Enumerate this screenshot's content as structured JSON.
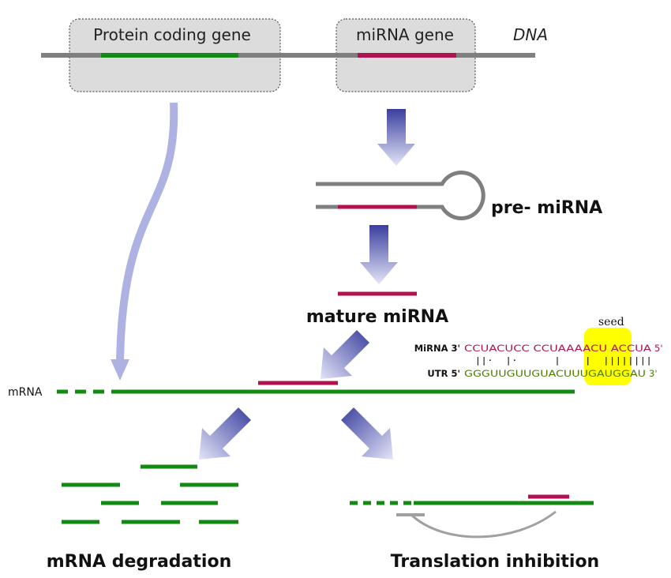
{
  "labels": {
    "protein_coding_gene": "Protein coding gene",
    "mirna_gene": "miRNA gene",
    "dna": "DNA",
    "pre_mirna": "pre- miRNA",
    "mature_mirna": "mature miRNA",
    "mrna": "mRNA",
    "mrna_degradation": "mRNA degradation",
    "translation_inhibition": "Translation inhibition",
    "seed": "seed"
  },
  "alignment": {
    "mirna_prefix": "MiRNA 3'",
    "mirna_seq": "CCUACUCC CCUAAAACU ACCUA",
    "mirna_suffix": "5'",
    "pairing": "  ||·  |·      |    |  ||||||||",
    "utr_prefix": "UTR 5'",
    "utr_seq": "GGGUUGUUGUACUUUGAUGGAU",
    "utr_suffix": "3'"
  },
  "colors": {
    "dna_line": "#7f7f7f",
    "protein_gene": "#138a13",
    "mirna": "#b0134f",
    "mrna": "#138a13",
    "gene_box_fill": "#dcdcdc",
    "arrow_dark": "#3a3f9e",
    "arrow_light": "#dfe1f5",
    "curve_arrow": "#aeb2e2",
    "seed_highlight": "#ffff00"
  }
}
